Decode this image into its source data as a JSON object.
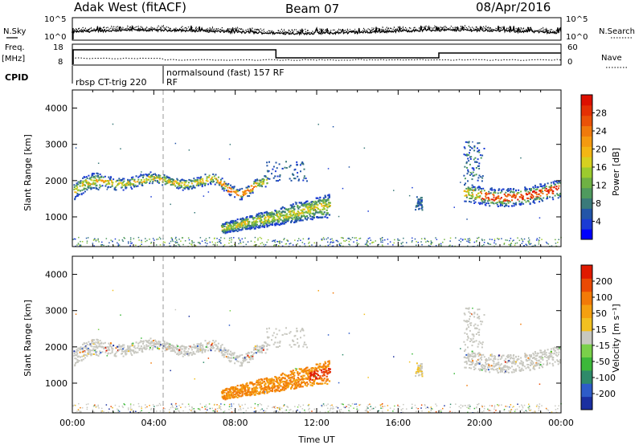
{
  "header": {
    "radar": "Adak West (fitACF)",
    "beam": "Beam 07",
    "date": "08/Apr/2016"
  },
  "panels": {
    "nsky_label": "N.Sky",
    "nsky_ticks": [
      "10^5",
      "10^0"
    ],
    "nsearch_label": "N.Search",
    "nsearch_ticks": [
      "10^5",
      "10^0"
    ],
    "freq_label_1": "Freq.",
    "freq_label_2": "[MHz]",
    "freq_ticks": [
      "18",
      "8"
    ],
    "nave_label": "Nave",
    "nave_ticks": [
      "60",
      "0"
    ],
    "cpid_label": "CPID",
    "cpid_1": "rbsp CT-trig 220",
    "cpid_1b": "RF",
    "cpid_2": "normalsound (fast) 157 RF"
  },
  "chart_data": [
    {
      "type": "heatmap",
      "title": "Power",
      "ylabel": "Slant Range [km]",
      "xlabel": "",
      "y_ticks": [
        "4000",
        "3000",
        "2000",
        "1000"
      ],
      "ylim": [
        180,
        4500
      ],
      "colorbar_label": "Power [dB]",
      "colorbar_ticks": [
        "28",
        "24",
        "20",
        "16",
        "12",
        "8",
        "4"
      ],
      "colorbar_colors": [
        "#0000ff",
        "#1a3bd4",
        "#2355a8",
        "#3a7a7a",
        "#4f9a5e",
        "#6fb144",
        "#9ccb2e",
        "#d6d020",
        "#f4b614",
        "#f59a10",
        "#f07a0c",
        "#ea5208",
        "#e43004",
        "#dd1000"
      ]
    },
    {
      "type": "heatmap",
      "title": "Velocity",
      "ylabel": "Slant Range [km]",
      "xlabel": "Time UT",
      "x_ticks": [
        "00:00",
        "04:00",
        "08:00",
        "12:00",
        "16:00",
        "20:00",
        "00:00"
      ],
      "y_ticks": [
        "4000",
        "3000",
        "2000",
        "1000"
      ],
      "ylim": [
        180,
        4500
      ],
      "colorbar_label": "Velocity [m s⁻¹]",
      "colorbar_ticks": [
        "200",
        "100",
        "50",
        "15",
        "-15",
        "-50",
        "-100",
        "-200"
      ],
      "colorbar_colors": [
        "#1a2fa0",
        "#2e5cc8",
        "#2e8a6a",
        "#3cb83a",
        "#7ad04a",
        "#c8c8c0",
        "#f2c020",
        "#f5a010",
        "#f27a08",
        "#ea4a04",
        "#e01a00"
      ]
    }
  ]
}
